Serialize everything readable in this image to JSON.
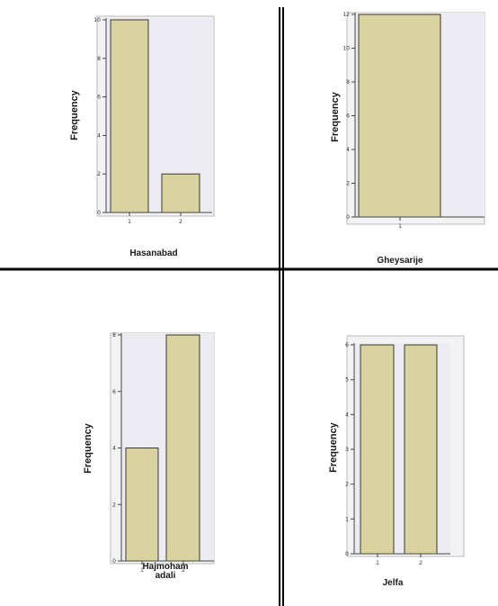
{
  "colors": {
    "bar_fill": "#d8d3a0",
    "bar_stroke": "#3a3a2a",
    "plot_bg": "#ececf2",
    "axis": "#444444",
    "divider": "#000000"
  },
  "chart_data": [
    {
      "type": "bar",
      "categories": [
        "1",
        "2"
      ],
      "values": [
        10,
        2
      ],
      "xlabel": "Hasanabad",
      "ylabel": "Frequency",
      "ylim": [
        0,
        10
      ],
      "yticks": [
        0,
        2,
        4,
        6,
        8,
        10
      ]
    },
    {
      "type": "bar",
      "categories": [
        "1"
      ],
      "values": [
        12
      ],
      "xlabel": "Gheysarije",
      "ylabel": "Frequency",
      "ylim": [
        0,
        12
      ],
      "yticks": [
        0,
        2,
        4,
        6,
        8,
        10,
        12
      ]
    },
    {
      "type": "bar",
      "categories": [
        "1",
        "2"
      ],
      "values": [
        4,
        8
      ],
      "xlabel": "Hajmoham adali",
      "ylabel": "Frequency",
      "ylim": [
        0,
        8
      ],
      "yticks": [
        0,
        2,
        4,
        6,
        8
      ]
    },
    {
      "type": "bar",
      "categories": [
        "1",
        "2"
      ],
      "values": [
        6,
        6
      ],
      "xlabel": "Jelfa",
      "ylabel": "Frequency",
      "ylim": [
        0,
        6
      ],
      "yticks": [
        0,
        1,
        2,
        3,
        4,
        5,
        6
      ]
    }
  ]
}
